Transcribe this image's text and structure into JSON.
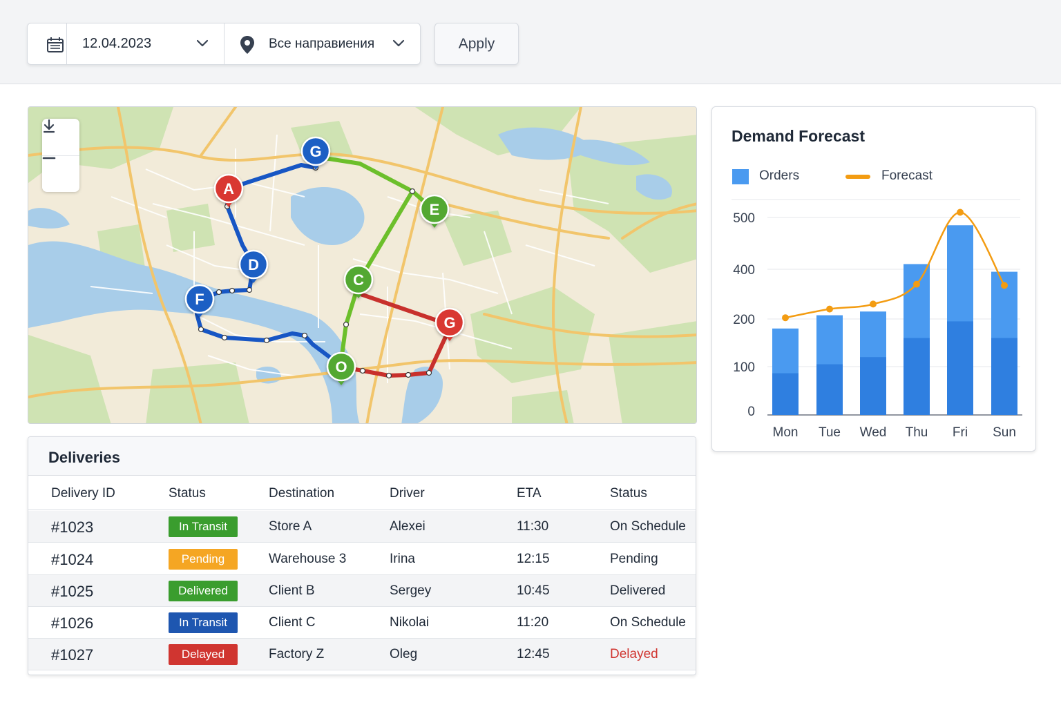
{
  "filters": {
    "date_value": "12.04.2023",
    "region_value": "Все направиения",
    "apply_label": "Apply",
    "icons": {
      "calendar": "calendar-icon",
      "region": "map-pin-icon",
      "dropdown": "chevron-down-icon"
    }
  },
  "map": {
    "controls": {
      "download": "download-icon",
      "zoom_out": "minus-icon"
    },
    "markers": [
      {
        "label": "A",
        "color": "#d93832"
      },
      {
        "label": "G",
        "color": "#1a5fc4"
      },
      {
        "label": "E",
        "color": "#52a833"
      },
      {
        "label": "D",
        "color": "#1a5fc4"
      },
      {
        "label": "F",
        "color": "#1a5fc4"
      },
      {
        "label": "C",
        "color": "#52a833"
      },
      {
        "label": "G",
        "color": "#d93832"
      },
      {
        "label": "O",
        "color": "#52a833"
      }
    ],
    "route_colors": {
      "blue": "#1756c4",
      "green": "#6cbf2b",
      "red": "#c8302c"
    }
  },
  "deliveries": {
    "title": "Deliveries",
    "columns": [
      "Delivery ID",
      "Status",
      "Destination",
      "Driver",
      "ETA",
      "Status"
    ],
    "rows": [
      {
        "id": "#1023",
        "badge": "In Transit",
        "badge_color": "#3a9d2e",
        "destination": "Store A",
        "driver": "Alexei",
        "eta": "11:30",
        "status": "On Schedule",
        "status_color": "#1f2937"
      },
      {
        "id": "#1024",
        "badge": "Pending",
        "badge_color": "#f5a623",
        "destination": "Warehouse 3",
        "driver": "Irina",
        "eta": "12:15",
        "status": "Pending",
        "status_color": "#1f2937"
      },
      {
        "id": "#1025",
        "badge": "Delivered",
        "badge_color": "#3a9d2e",
        "destination": "Client B",
        "driver": "Sergey",
        "eta": "10:45",
        "status": "Delivered",
        "status_color": "#1f2937"
      },
      {
        "id": "#1026",
        "badge": "In Transit",
        "badge_color": "#1e56b0",
        "destination": "Client C",
        "driver": "Nikolai",
        "eta": "11:20",
        "status": "On Schedule",
        "status_color": "#1f2937"
      },
      {
        "id": "#1027",
        "badge": "Delayed",
        "badge_color": "#d03530",
        "destination": "Factory Z",
        "driver": "Oleg",
        "eta": "12:45",
        "status": "Delayed",
        "status_color": "#d03530"
      }
    ]
  },
  "forecast": {
    "title": "Demand Forecast",
    "legend": {
      "orders": "Orders",
      "forecast": "Forecast"
    },
    "colors": {
      "bar_top": "#4a9af0",
      "bar_bottom": "#2f7fe0",
      "line": "#f39c12"
    }
  },
  "chart_data": {
    "type": "bar",
    "title": "Demand Forecast",
    "categories": [
      "Mon",
      "Tue",
      "Wed",
      "Thu",
      "Fri",
      "Sun"
    ],
    "y_ticks": [
      "0",
      "100",
      "200",
      "400",
      "500"
    ],
    "series": [
      {
        "name": "Orders",
        "type": "bar",
        "values": [
          180,
          215,
          230,
          410,
          485,
          390
        ],
        "lower_values": [
          85,
          105,
          120,
          160,
          195,
          160
        ]
      },
      {
        "name": "Forecast",
        "type": "line",
        "values": [
          205,
          240,
          260,
          340,
          510,
          335
        ]
      }
    ],
    "legend_position": "top-left",
    "grid": true
  }
}
